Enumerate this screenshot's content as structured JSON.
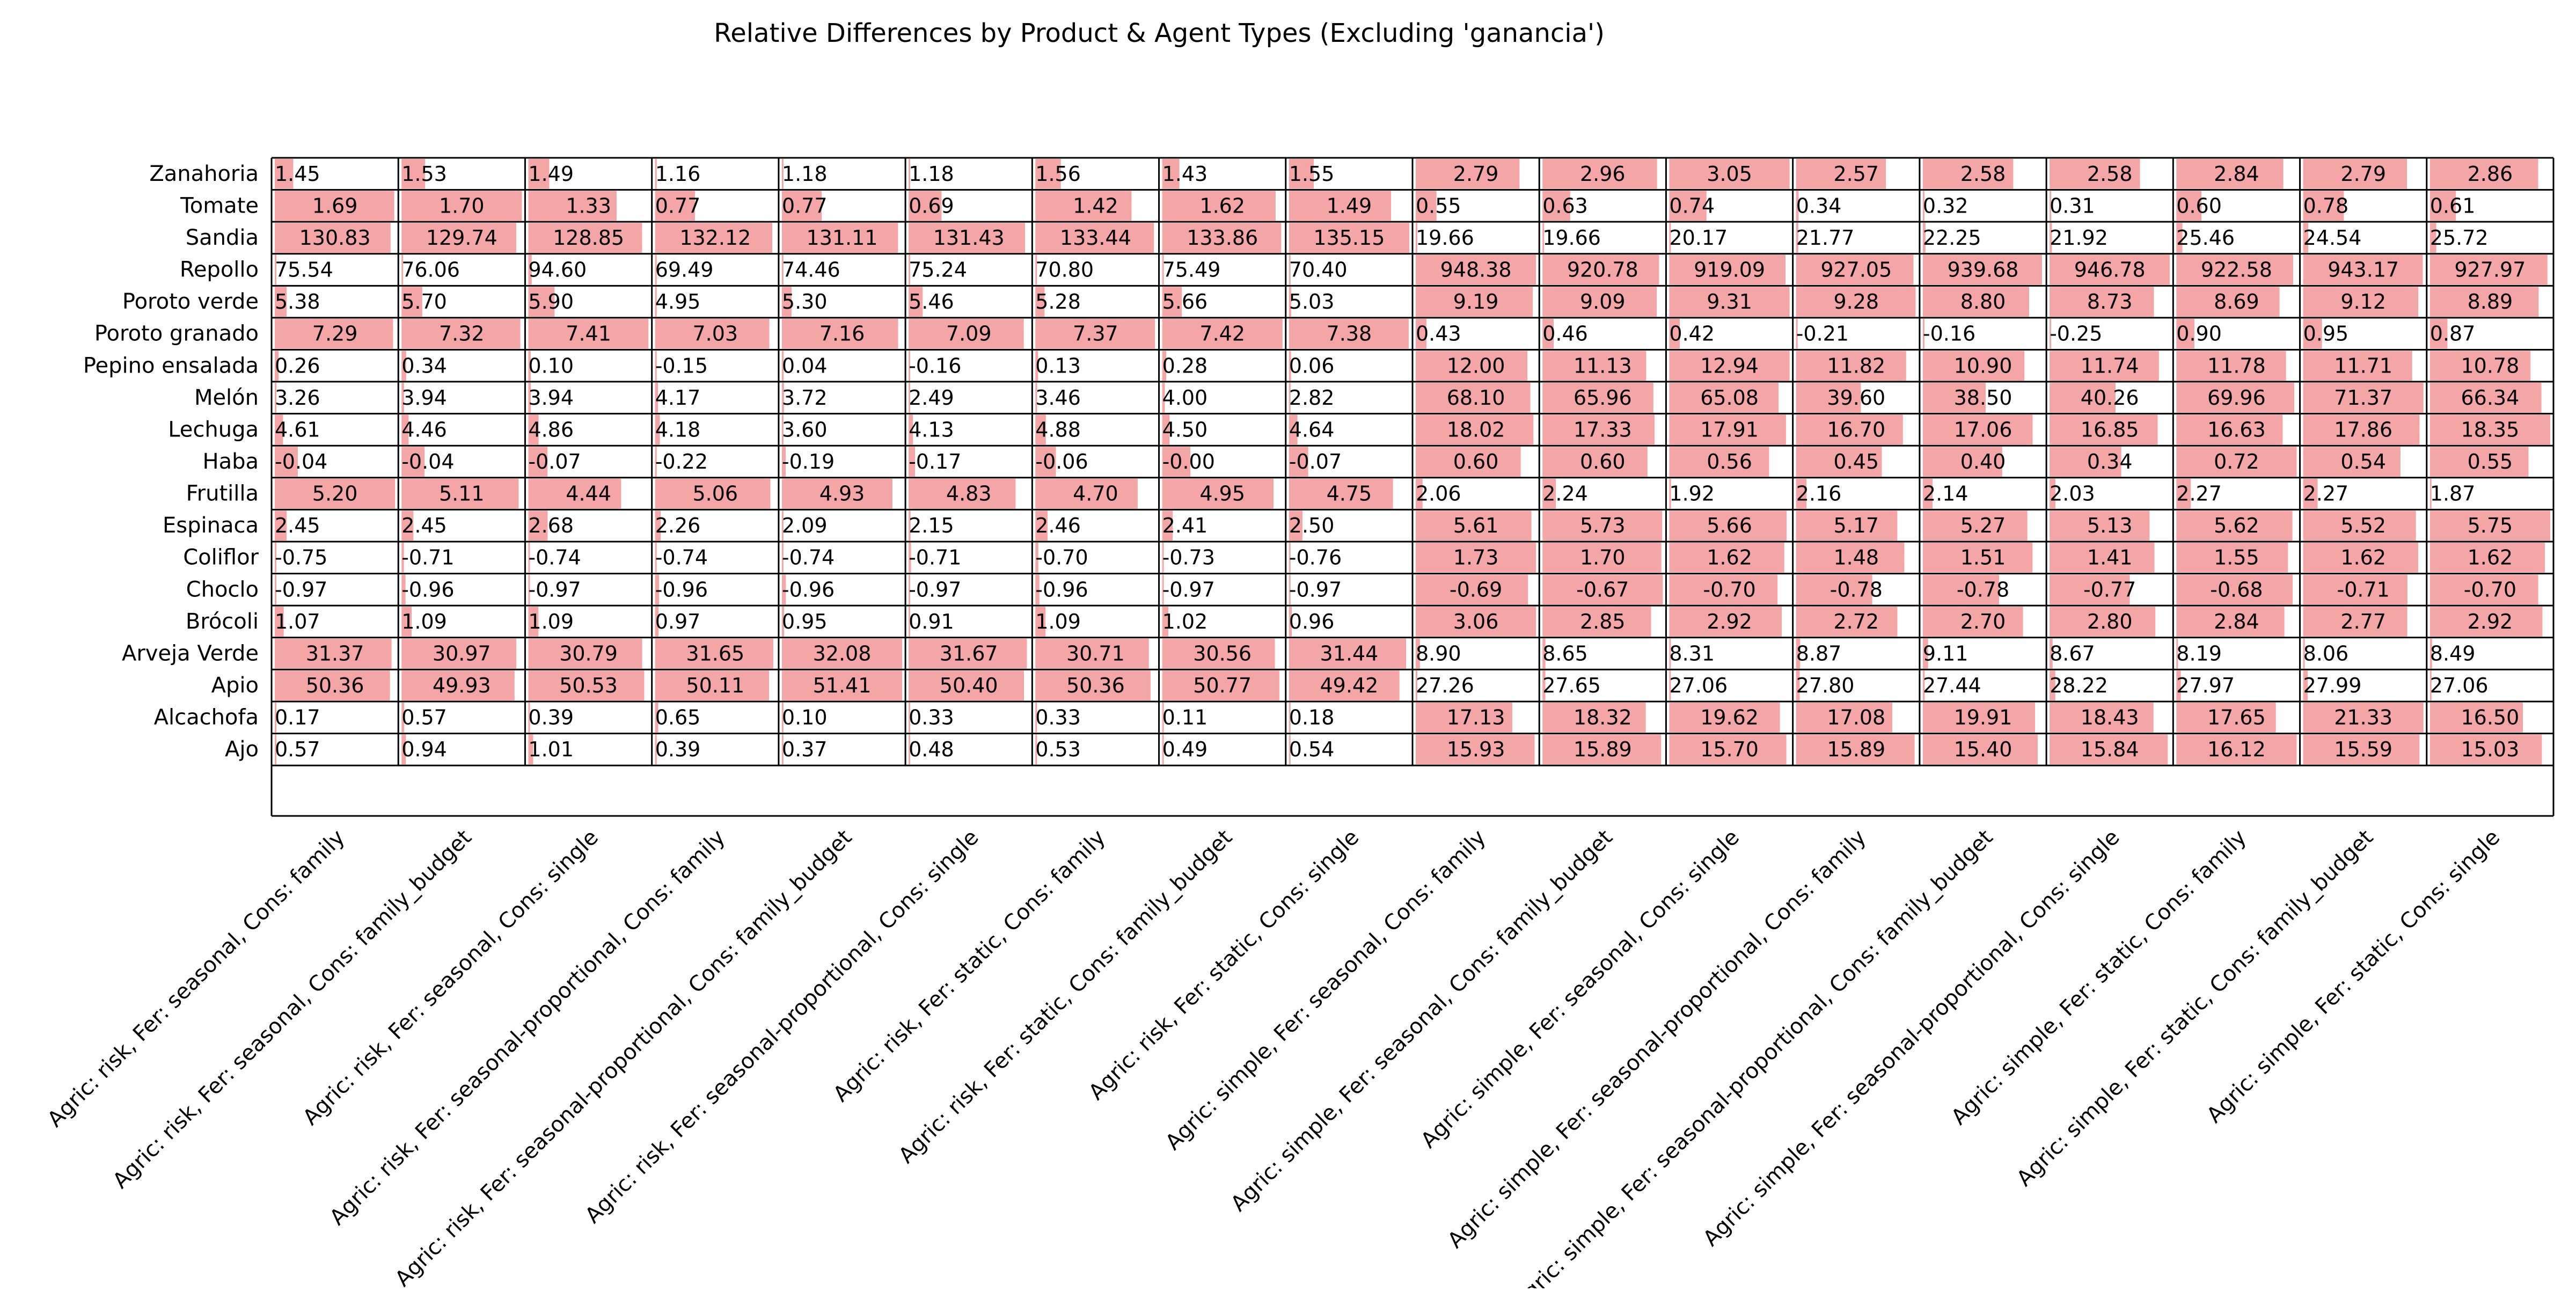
{
  "chart_data": {
    "type": "table",
    "title": "Relative Differences by Product & Agent Types (Excluding 'ganancia')",
    "bar_color": "#f4a6a6",
    "rows": [
      "Zanahoria",
      "Tomate",
      "Sandia",
      "Repollo",
      "Poroto verde",
      "Poroto granado",
      "Pepino ensalada",
      "Melón",
      "Lechuga",
      "Haba",
      "Frutilla",
      "Espinaca",
      "Coliflor",
      "Choclo",
      "Brócoli",
      "Arveja Verde",
      "Apio",
      "Alcachofa",
      "Ajo"
    ],
    "columns": [
      "Agric: risk, Fer: seasonal, Cons: family",
      "Agric: risk, Fer: seasonal, Cons: family_budget",
      "Agric: risk, Fer: seasonal, Cons: single",
      "Agric: risk, Fer: seasonal-proportional, Cons: family",
      "Agric: risk, Fer: seasonal-proportional, Cons: family_budget",
      "Agric: risk, Fer: seasonal-proportional, Cons: single",
      "Agric: risk, Fer: static, Cons: family",
      "Agric: risk, Fer: static, Cons: family_budget",
      "Agric: risk, Fer: static, Cons: single",
      "Agric: simple, Fer: seasonal, Cons: family",
      "Agric: simple, Fer: seasonal, Cons: family_budget",
      "Agric: simple, Fer: seasonal, Cons: single",
      "Agric: simple, Fer: seasonal-proportional, Cons: family",
      "Agric: simple, Fer: seasonal-proportional, Cons: family_budget",
      "Agric: simple, Fer: seasonal-proportional, Cons: single",
      "Agric: simple, Fer: static, Cons: family",
      "Agric: simple, Fer: static, Cons: family_budget",
      "Agric: simple, Fer: static, Cons: single"
    ],
    "values": [
      [
        "1.45",
        "1.53",
        "1.49",
        "1.16",
        "1.18",
        "1.18",
        "1.56",
        "1.43",
        "1.55",
        "2.79",
        "2.96",
        "3.05",
        "2.57",
        "2.58",
        "2.58",
        "2.84",
        "2.79",
        "2.86"
      ],
      [
        "1.69",
        "1.70",
        "1.33",
        "0.77",
        "0.77",
        "0.69",
        "1.42",
        "1.62",
        "1.49",
        "0.55",
        "0.63",
        "0.74",
        "0.34",
        "0.32",
        "0.31",
        "0.60",
        "0.78",
        "0.61"
      ],
      [
        "130.83",
        "129.74",
        "128.85",
        "132.12",
        "131.11",
        "131.43",
        "133.44",
        "133.86",
        "135.15",
        "19.66",
        "19.66",
        "20.17",
        "21.77",
        "22.25",
        "21.92",
        "25.46",
        "24.54",
        "25.72"
      ],
      [
        "75.54",
        "76.06",
        "94.60",
        "69.49",
        "74.46",
        "75.24",
        "70.80",
        "75.49",
        "70.40",
        "948.38",
        "920.78",
        "919.09",
        "927.05",
        "939.68",
        "946.78",
        "922.58",
        "943.17",
        "927.97"
      ],
      [
        "5.38",
        "5.70",
        "5.90",
        "4.95",
        "5.30",
        "5.46",
        "5.28",
        "5.66",
        "5.03",
        "9.19",
        "9.09",
        "9.31",
        "9.28",
        "8.80",
        "8.73",
        "8.69",
        "9.12",
        "8.89"
      ],
      [
        "7.29",
        "7.32",
        "7.41",
        "7.03",
        "7.16",
        "7.09",
        "7.37",
        "7.42",
        "7.38",
        "0.43",
        "0.46",
        "0.42",
        "-0.21",
        "-0.16",
        "-0.25",
        "0.90",
        "0.95",
        "0.87"
      ],
      [
        "0.26",
        "0.34",
        "0.10",
        "-0.15",
        "0.04",
        "-0.16",
        "0.13",
        "0.28",
        "0.06",
        "12.00",
        "11.13",
        "12.94",
        "11.82",
        "10.90",
        "11.74",
        "11.78",
        "11.71",
        "10.78"
      ],
      [
        "3.26",
        "3.94",
        "3.94",
        "4.17",
        "3.72",
        "2.49",
        "3.46",
        "4.00",
        "2.82",
        "68.10",
        "65.96",
        "65.08",
        "39.60",
        "38.50",
        "40.26",
        "69.96",
        "71.37",
        "66.34"
      ],
      [
        "4.61",
        "4.46",
        "4.86",
        "4.18",
        "3.60",
        "4.13",
        "4.88",
        "4.50",
        "4.64",
        "18.02",
        "17.33",
        "17.91",
        "16.70",
        "17.06",
        "16.85",
        "16.63",
        "17.86",
        "18.35"
      ],
      [
        "-0.04",
        "-0.04",
        "-0.07",
        "-0.22",
        "-0.19",
        "-0.17",
        "-0.06",
        "-0.00",
        "-0.07",
        "0.60",
        "0.60",
        "0.56",
        "0.45",
        "0.40",
        "0.34",
        "0.72",
        "0.54",
        "0.55"
      ],
      [
        "5.20",
        "5.11",
        "4.44",
        "5.06",
        "4.93",
        "4.83",
        "4.70",
        "4.95",
        "4.75",
        "2.06",
        "2.24",
        "1.92",
        "2.16",
        "2.14",
        "2.03",
        "2.27",
        "2.27",
        "1.87"
      ],
      [
        "2.45",
        "2.45",
        "2.68",
        "2.26",
        "2.09",
        "2.15",
        "2.46",
        "2.41",
        "2.50",
        "5.61",
        "5.73",
        "5.66",
        "5.17",
        "5.27",
        "5.13",
        "5.62",
        "5.52",
        "5.75"
      ],
      [
        "-0.75",
        "-0.71",
        "-0.74",
        "-0.74",
        "-0.74",
        "-0.71",
        "-0.70",
        "-0.73",
        "-0.76",
        "1.73",
        "1.70",
        "1.62",
        "1.48",
        "1.51",
        "1.41",
        "1.55",
        "1.62",
        "1.62"
      ],
      [
        "-0.97",
        "-0.96",
        "-0.97",
        "-0.96",
        "-0.96",
        "-0.97",
        "-0.96",
        "-0.97",
        "-0.97",
        "-0.69",
        "-0.67",
        "-0.70",
        "-0.78",
        "-0.78",
        "-0.77",
        "-0.68",
        "-0.71",
        "-0.70"
      ],
      [
        "1.07",
        "1.09",
        "1.09",
        "0.97",
        "0.95",
        "0.91",
        "1.09",
        "1.02",
        "0.96",
        "3.06",
        "2.85",
        "2.92",
        "2.72",
        "2.70",
        "2.80",
        "2.84",
        "2.77",
        "2.92"
      ],
      [
        "31.37",
        "30.97",
        "30.79",
        "31.65",
        "32.08",
        "31.67",
        "30.71",
        "30.56",
        "31.44",
        "8.90",
        "8.65",
        "8.31",
        "8.87",
        "9.11",
        "8.67",
        "8.19",
        "8.06",
        "8.49"
      ],
      [
        "50.36",
        "49.93",
        "50.53",
        "50.11",
        "51.41",
        "50.40",
        "50.36",
        "50.77",
        "49.42",
        "27.26",
        "27.65",
        "27.06",
        "27.80",
        "27.44",
        "28.22",
        "27.97",
        "27.99",
        "27.06"
      ],
      [
        "0.17",
        "0.57",
        "0.39",
        "0.65",
        "0.10",
        "0.33",
        "0.33",
        "0.11",
        "0.18",
        "17.13",
        "18.32",
        "19.62",
        "17.08",
        "19.91",
        "18.43",
        "17.65",
        "21.33",
        "16.50"
      ],
      [
        "0.57",
        "0.94",
        "1.01",
        "0.39",
        "0.37",
        "0.48",
        "0.53",
        "0.49",
        "0.54",
        "15.93",
        "15.89",
        "15.70",
        "15.89",
        "15.40",
        "15.84",
        "16.12",
        "15.59",
        "15.03"
      ]
    ]
  }
}
